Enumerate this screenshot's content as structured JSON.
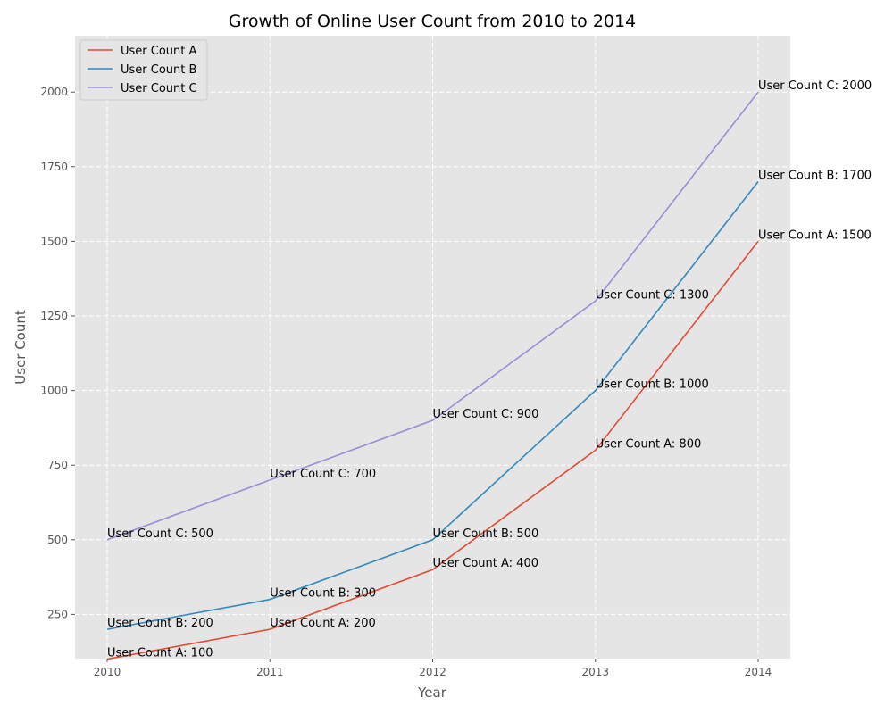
{
  "chart_data": {
    "type": "line",
    "title": "Growth of Online User Count from 2010 to 2014",
    "xlabel": "Year",
    "ylabel": "User Count",
    "x": [
      "2010",
      "2011",
      "2012",
      "2013",
      "2014"
    ],
    "yticks": [
      "250",
      "500",
      "750",
      "1000",
      "1250",
      "1500",
      "1750",
      "2000"
    ],
    "ylim": [
      0,
      2100
    ],
    "grid": true,
    "legend_position": "top-left",
    "series": [
      {
        "name": "User Count A",
        "color": "#E24A33",
        "values": [
          100,
          200,
          400,
          800,
          1500
        ],
        "labels": [
          "User Count A: 100",
          "User Count A: 200",
          "User Count A: 400",
          "User Count A: 800",
          "User Count A: 1500"
        ]
      },
      {
        "name": "User Count B",
        "color": "#348ABD",
        "values": [
          200,
          300,
          500,
          1000,
          1700
        ],
        "labels": [
          "User Count B: 200",
          "User Count B: 300",
          "User Count B: 500",
          "User Count B: 1000",
          "User Count B: 1700"
        ]
      },
      {
        "name": "User Count C",
        "color": "#988ED5",
        "values": [
          500,
          700,
          900,
          1300,
          2000
        ],
        "labels": [
          "User Count C: 500",
          "User Count C: 700",
          "User Count C: 900",
          "User Count C: 1300",
          "User Count C: 2000"
        ]
      }
    ]
  }
}
